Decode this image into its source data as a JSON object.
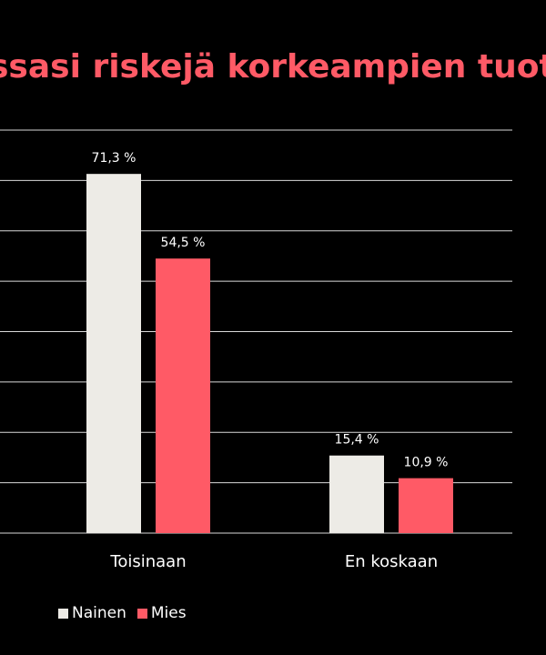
{
  "chart_data": {
    "type": "bar",
    "title": "ssasi riskejä korkeampien tuottojen",
    "categories": [
      "Toisinaan",
      "En koskaan"
    ],
    "series": [
      {
        "name": "Nainen",
        "values": [
          71.3,
          15.4
        ],
        "labels": [
          "71,3 %",
          "15,4 %"
        ],
        "color": "#edebe6"
      },
      {
        "name": "Mies",
        "values": [
          54.5,
          10.9
        ],
        "labels": [
          "54,5 %",
          "10,9 %"
        ],
        "color": "#ff5a66"
      }
    ],
    "ylim": [
      0,
      80
    ],
    "grid": true,
    "legend": "bottom-left"
  }
}
